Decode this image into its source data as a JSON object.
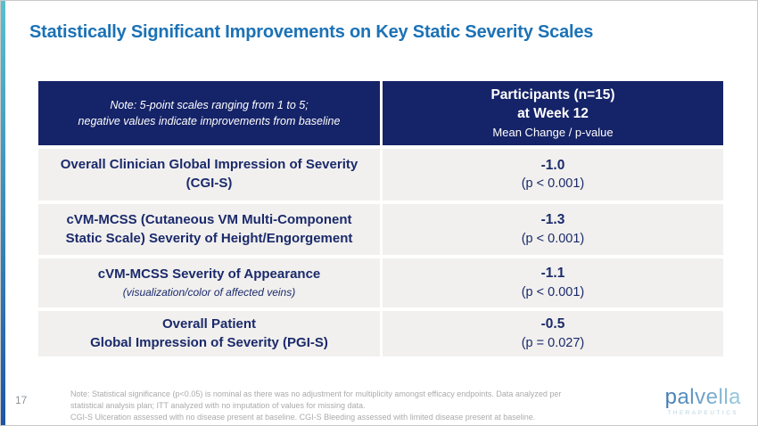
{
  "slide": {
    "page_number": "17",
    "title": "Statistically Significant Improvements on Key Static Severity Scales"
  },
  "table": {
    "header": {
      "note_line1": "Note: 5-point scales ranging from 1 to 5;",
      "note_line2": "negative values indicate improvements from baseline",
      "participants_line1": "Participants (n=15)",
      "participants_line2": "at Week 12",
      "participants_line3": "Mean Change / p-value"
    },
    "rows": [
      {
        "label_line1": "Overall Clinician Global Impression of Severity",
        "label_line2": "(CGI-S)",
        "value": "-1.0",
        "p_value": "(p < 0.001)"
      },
      {
        "label_line1": "cVM-MCSS (Cutaneous VM Multi-Component",
        "label_line2": "Static Scale) Severity of Height/Engorgement",
        "value": "-1.3",
        "p_value": "(p < 0.001)"
      },
      {
        "label_line1": "cVM-MCSS Severity of Appearance",
        "label_line2": "(visualization/color of affected veins)",
        "value": "-1.1",
        "p_value": "(p < 0.001)"
      },
      {
        "label_line1": "Overall Patient",
        "label_line2": "Global Impression of Severity (PGI-S)",
        "value": "-0.5",
        "p_value": "(p = 0.027)"
      }
    ]
  },
  "footer": {
    "note_text_1": "Note: Statistical significance (p<0.05) is nominal as there was no adjustment for multiplicity amongst efficacy endpoints. Data analyzed per statistical analysis plan; ITT analyzed with no imputation of values for missing data.",
    "note_text_2": "CGI-S Ulceration assessed with no disease present at baseline. CGI-S Bleeding assessed with limited disease present at baseline.",
    "logo_text": "palvella",
    "logo_subtext": "THERAPEUTICS"
  },
  "colors": {
    "title_blue": "#1B72B6",
    "header_navy": "#152368",
    "row_bg": "#F1F0EE",
    "text_navy": "#1B2A6B",
    "accent_bar_top": "#59BFCD",
    "accent_bar_bottom": "#1D55A5",
    "footer_gray": "#ABABAB",
    "page_num_gray": "#8F9399",
    "logo_sub_blue": "#B5D2E2"
  }
}
